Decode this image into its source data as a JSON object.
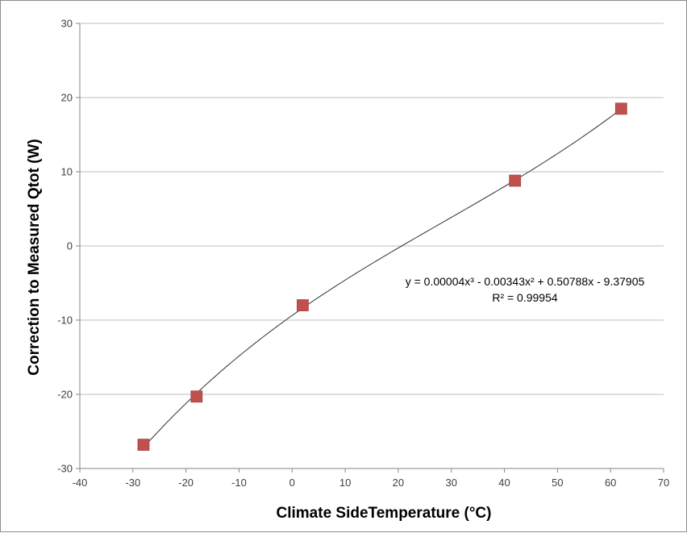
{
  "chart_data": {
    "type": "scatter",
    "title": "",
    "xlabel": "Climate SideTemperature (°C)",
    "ylabel": "Correction to Measured Qtot (W)",
    "xlim": [
      -40,
      70
    ],
    "ylim": [
      -30,
      30
    ],
    "x_ticks": [
      -40,
      -30,
      -20,
      -10,
      0,
      10,
      20,
      30,
      40,
      50,
      60,
      70
    ],
    "y_ticks": [
      -30,
      -20,
      -10,
      0,
      10,
      20,
      30
    ],
    "grid": "horizontal",
    "legend": "none",
    "series": [
      {
        "x": [
          -28,
          -18,
          2,
          42,
          62
        ],
        "y": [
          -26.8,
          -20.3,
          -8.0,
          8.8,
          18.5
        ],
        "marker": "square",
        "color": "#c0504d"
      }
    ],
    "trendline": {
      "type": "polynomial",
      "order": 3,
      "coefficients": [
        4e-05,
        -0.00343,
        0.50788,
        -9.37905
      ],
      "x_range": [
        -28,
        62
      ],
      "color": "#404040",
      "equation_text": "y = 0.00004x³ - 0.00343x² + 0.50788x - 9.37905",
      "r2_text": "R² = 0.99954"
    }
  }
}
